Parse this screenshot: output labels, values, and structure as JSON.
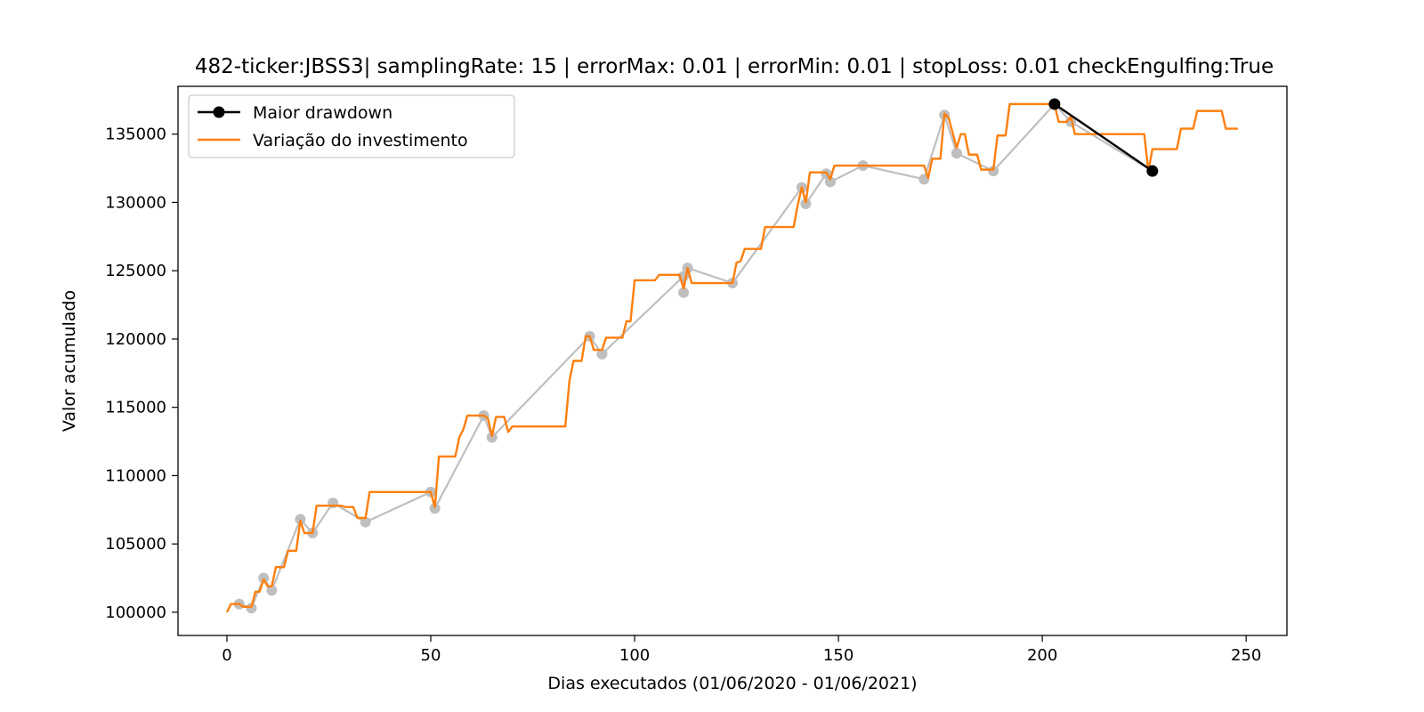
{
  "chart_data": {
    "type": "line",
    "title": "482-ticker:JBSS3| samplingRate: 15 | errorMax: 0.01 | errorMin: 0.01 | stopLoss: 0.01 checkEngulfing:True",
    "xlabel": "Dias executados (01/06/2020 - 01/06/2021)",
    "ylabel": "Valor acumulado",
    "xlim": [
      -12,
      260
    ],
    "ylim": [
      98300,
      138500
    ],
    "xticks": [
      0,
      50,
      100,
      150,
      200,
      250
    ],
    "yticks": [
      100000,
      105000,
      110000,
      115000,
      120000,
      125000,
      130000,
      135000
    ],
    "legend_position": "upper-left",
    "grid": false,
    "colors": {
      "investment": "#ff7f0e",
      "drawdown": "#000000",
      "pivots": "#bfbfbf"
    },
    "series": [
      {
        "name": "Maior drawdown",
        "style": "line-markers",
        "points": [
          [
            203,
            137200
          ],
          [
            227,
            132300
          ]
        ]
      },
      {
        "name": "Variação do investimento",
        "style": "line",
        "points": [
          [
            0,
            100000
          ],
          [
            1,
            100600
          ],
          [
            3,
            100600
          ],
          [
            4,
            100400
          ],
          [
            6,
            100400
          ],
          [
            7,
            101500
          ],
          [
            8,
            101500
          ],
          [
            9,
            102400
          ],
          [
            10,
            101900
          ],
          [
            11,
            101900
          ],
          [
            12,
            103300
          ],
          [
            14,
            103300
          ],
          [
            15,
            104500
          ],
          [
            17,
            104500
          ],
          [
            18,
            106700
          ],
          [
            19,
            105800
          ],
          [
            21,
            105800
          ],
          [
            22,
            107800
          ],
          [
            28,
            107800
          ],
          [
            29,
            107700
          ],
          [
            31,
            107700
          ],
          [
            32,
            106900
          ],
          [
            34,
            106900
          ],
          [
            35,
            108800
          ],
          [
            50,
            108800
          ],
          [
            51,
            107700
          ],
          [
            52,
            111400
          ],
          [
            56,
            111400
          ],
          [
            57,
            112800
          ],
          [
            58,
            113400
          ],
          [
            59,
            114400
          ],
          [
            63,
            114400
          ],
          [
            64,
            114200
          ],
          [
            65,
            112900
          ],
          [
            66,
            114300
          ],
          [
            68,
            114300
          ],
          [
            69,
            113200
          ],
          [
            70,
            113600
          ],
          [
            83,
            113600
          ],
          [
            84,
            116900
          ],
          [
            85,
            118400
          ],
          [
            87,
            118400
          ],
          [
            88,
            120200
          ],
          [
            89,
            120200
          ],
          [
            90,
            119200
          ],
          [
            92,
            119200
          ],
          [
            93,
            120100
          ],
          [
            97,
            120100
          ],
          [
            98,
            121300
          ],
          [
            99,
            121300
          ],
          [
            100,
            124300
          ],
          [
            105,
            124300
          ],
          [
            106,
            124700
          ],
          [
            111,
            124700
          ],
          [
            112,
            123700
          ],
          [
            113,
            125200
          ],
          [
            114,
            124100
          ],
          [
            124,
            124100
          ],
          [
            125,
            125600
          ],
          [
            126,
            125700
          ],
          [
            127,
            126600
          ],
          [
            131,
            126600
          ],
          [
            132,
            128200
          ],
          [
            139,
            128200
          ],
          [
            140,
            129800
          ],
          [
            141,
            131100
          ],
          [
            142,
            130000
          ],
          [
            143,
            132200
          ],
          [
            147,
            132200
          ],
          [
            148,
            131700
          ],
          [
            149,
            132700
          ],
          [
            171,
            132700
          ],
          [
            172,
            131800
          ],
          [
            173,
            133200
          ],
          [
            175,
            133200
          ],
          [
            176,
            136500
          ],
          [
            177,
            136200
          ],
          [
            179,
            134000
          ],
          [
            180,
            135000
          ],
          [
            181,
            135000
          ],
          [
            182,
            133500
          ],
          [
            184,
            133500
          ],
          [
            185,
            132400
          ],
          [
            188,
            132400
          ],
          [
            189,
            134900
          ],
          [
            191,
            134900
          ],
          [
            192,
            137200
          ],
          [
            203,
            137200
          ],
          [
            204,
            135900
          ],
          [
            206,
            135900
          ],
          [
            207,
            136300
          ],
          [
            208,
            135000
          ],
          [
            225,
            135000
          ],
          [
            226,
            132300
          ],
          [
            227,
            133900
          ],
          [
            233,
            133900
          ],
          [
            234,
            135400
          ],
          [
            237,
            135400
          ],
          [
            238,
            136700
          ],
          [
            244,
            136700
          ],
          [
            245,
            135400
          ],
          [
            248,
            135400
          ]
        ]
      }
    ],
    "pivots": [
      [
        3,
        100600
      ],
      [
        6,
        100300
      ],
      [
        9,
        102500
      ],
      [
        11,
        101600
      ],
      [
        18,
        106800
      ],
      [
        21,
        105800
      ],
      [
        26,
        108000
      ],
      [
        34,
        106600
      ],
      [
        50,
        108800
      ],
      [
        51,
        107600
      ],
      [
        63,
        114400
      ],
      [
        65,
        112800
      ],
      [
        89,
        120200
      ],
      [
        92,
        118900
      ],
      [
        112,
        124600
      ],
      [
        112,
        123400
      ],
      [
        113,
        125200
      ],
      [
        124,
        124100
      ],
      [
        141,
        131100
      ],
      [
        142,
        129900
      ],
      [
        147,
        132100
      ],
      [
        148,
        131500
      ],
      [
        156,
        132700
      ],
      [
        171,
        131700
      ],
      [
        176,
        136400
      ],
      [
        179,
        133600
      ],
      [
        188,
        132300
      ],
      [
        203,
        137200
      ],
      [
        207,
        135900
      ],
      [
        227,
        132300
      ]
    ]
  }
}
